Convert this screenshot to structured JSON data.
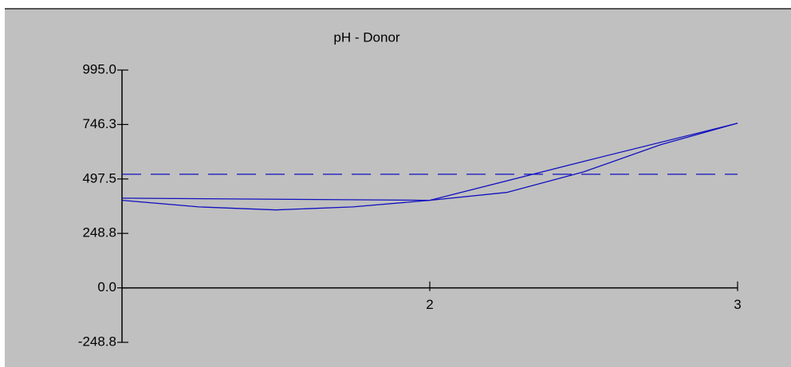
{
  "chart_data": {
    "type": "line",
    "title": "pH - Donor",
    "series": [
      {
        "color": "#1010c0",
        "style": "solid",
        "x": [
          1,
          2,
          2.5,
          3
        ],
        "values": [
          410,
          400,
          578,
          752
        ]
      },
      {
        "color": "#1010c0",
        "style": "solid",
        "x": [
          1,
          1.25,
          1.5,
          1.75,
          2,
          2.25,
          2.5,
          2.75,
          3
        ],
        "values": [
          400,
          370,
          356,
          370,
          400,
          436,
          530,
          654,
          752
        ]
      },
      {
        "color": "#1010c0",
        "style": "dash",
        "x": [
          1,
          3
        ],
        "values": [
          519,
          519
        ]
      }
    ],
    "xlim": [
      1,
      3
    ],
    "xticks": [
      2,
      3
    ],
    "ylim": [
      -248.8,
      995.0
    ],
    "yticks": [
      {
        "value": 995,
        "label": "995.0"
      },
      746.3,
      497.5,
      248.8,
      {
        "value": 0,
        "label": "0.0"
      },
      -248.8
    ]
  }
}
